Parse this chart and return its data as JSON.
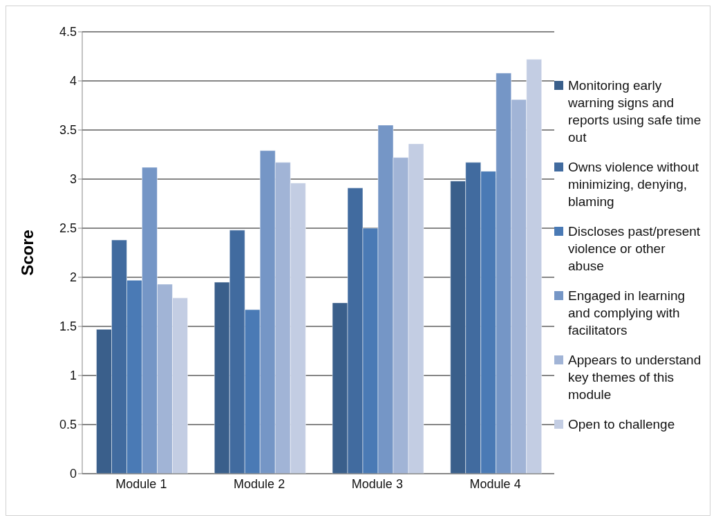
{
  "chart_data": {
    "type": "bar",
    "ylabel": "Score",
    "categories": [
      "Module 1",
      "Module 2",
      "Module 3",
      "Module 4"
    ],
    "series": [
      {
        "name": "Monitoring early warning signs and reports using safe time out",
        "color": "#3a5f8b",
        "values": [
          1.47,
          1.95,
          1.74,
          2.98
        ]
      },
      {
        "name": "Owns violence without minimizing, denying, blaming",
        "color": "#416b9f",
        "values": [
          2.38,
          2.48,
          2.91,
          3.17
        ]
      },
      {
        "name": "Discloses past/present violence or other abuse",
        "color": "#4a7ab5",
        "values": [
          1.97,
          1.67,
          2.5,
          3.08
        ]
      },
      {
        "name": "Engaged in learning and complying with facilitators",
        "color": "#7596c6",
        "values": [
          3.12,
          3.29,
          3.55,
          4.08
        ]
      },
      {
        "name": "Appears to understand key themes of this module",
        "color": "#a1b4d6",
        "values": [
          1.93,
          3.17,
          3.22,
          3.81
        ]
      },
      {
        "name": "Open to challenge",
        "color": "#c3cde3",
        "values": [
          1.79,
          2.96,
          3.36,
          4.22
        ]
      }
    ],
    "ylim": [
      0,
      4.5
    ],
    "yticks": [
      0,
      0.5,
      1,
      1.5,
      2,
      2.5,
      3,
      3.5,
      4,
      4.5
    ],
    "grid": "y",
    "legend": "right"
  }
}
